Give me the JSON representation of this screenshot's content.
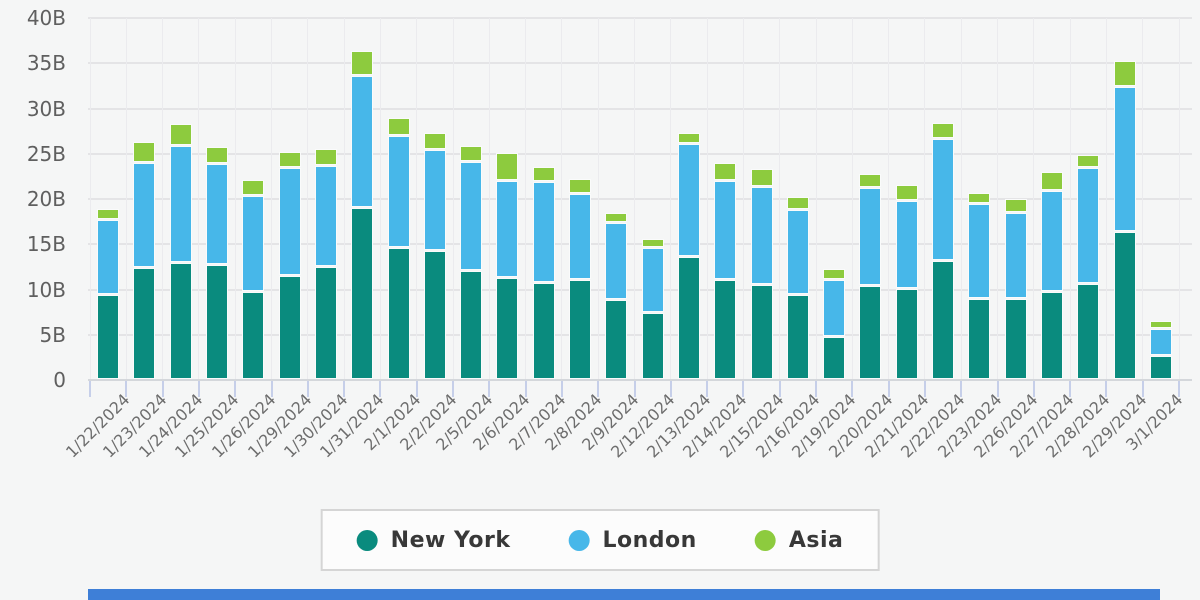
{
  "chart_data": {
    "type": "bar",
    "stacked": true,
    "title": "",
    "xlabel": "",
    "ylabel": "",
    "unit": "B",
    "ylim": [
      0,
      40
    ],
    "y_tick_step": 5,
    "y_ticks": [
      "0",
      "5B",
      "10B",
      "15B",
      "20B",
      "25B",
      "30B",
      "35B",
      "40B"
    ],
    "grid": true,
    "legend_position": "bottom",
    "categories": [
      "1/22/2024",
      "1/23/2024",
      "1/24/2024",
      "1/25/2024",
      "1/26/2024",
      "1/29/2024",
      "1/30/2024",
      "1/31/2024",
      "2/1/2024",
      "2/2/2024",
      "2/5/2024",
      "2/6/2024",
      "2/7/2024",
      "2/8/2024",
      "2/9/2024",
      "2/12/2024",
      "2/13/2024",
      "2/14/2024",
      "2/15/2024",
      "2/16/2024",
      "2/19/2024",
      "2/20/2024",
      "2/21/2024",
      "2/22/2024",
      "2/23/2024",
      "2/26/2024",
      "2/27/2024",
      "2/28/2024",
      "2/29/2024",
      "3/1/2024"
    ],
    "series": [
      {
        "name": "New York",
        "color": "#0a8b7e",
        "values": [
          9.4,
          12.4,
          12.9,
          12.7,
          9.7,
          11.5,
          12.5,
          19.0,
          14.6,
          14.2,
          12.0,
          11.3,
          10.7,
          11.0,
          8.8,
          7.4,
          13.6,
          11.0,
          10.5,
          9.4,
          4.8,
          10.4,
          10.1,
          13.1,
          9.0,
          9.0,
          9.7,
          10.6,
          16.3,
          2.7
        ]
      },
      {
        "name": "London",
        "color": "#47b7e9",
        "values": [
          8.3,
          11.6,
          13.0,
          11.2,
          10.6,
          11.9,
          11.1,
          14.6,
          12.4,
          11.2,
          12.1,
          10.7,
          11.2,
          9.5,
          8.6,
          7.2,
          12.5,
          11.0,
          10.8,
          9.4,
          6.2,
          10.8,
          9.7,
          13.5,
          10.4,
          9.5,
          11.2,
          12.8,
          16.1,
          2.9
        ]
      },
      {
        "name": "Asia",
        "color": "#8dcb3e",
        "values": [
          1.2,
          2.3,
          2.4,
          1.9,
          1.8,
          1.8,
          1.9,
          2.7,
          2.0,
          1.9,
          1.8,
          3.1,
          1.6,
          1.7,
          1.1,
          1.0,
          1.2,
          2.0,
          2.0,
          1.4,
          1.3,
          1.6,
          1.7,
          1.8,
          1.3,
          1.5,
          2.1,
          1.5,
          2.8,
          0.9
        ]
      }
    ]
  },
  "colors": {
    "background": "#f5f6f6",
    "gridline": "#e4e4e6",
    "vertical_gridline": "#ebebee",
    "axis_line": "#d4d7db",
    "axis_tick": "#c6cfe9",
    "y_label_text": "#5f5f5f",
    "x_label_text": "#6d6d6d",
    "legend_text": "#383838",
    "legend_border": "#d5d5d5",
    "legend_background": "#fcfcfc",
    "scrollbar": "#3e7fd7"
  }
}
